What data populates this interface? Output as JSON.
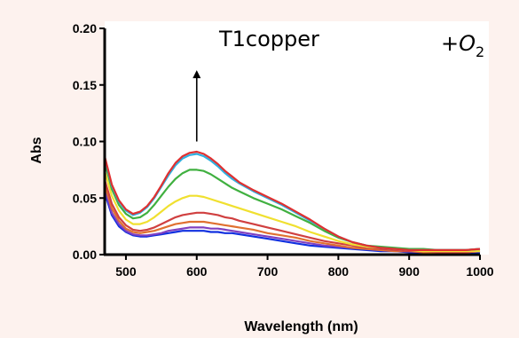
{
  "colors": {
    "background": "#fdf2ee",
    "plot_background": "#ffffff",
    "axis": "#000000"
  },
  "chart_data": {
    "type": "line",
    "title": "",
    "xlabel": "Wavelength (nm)",
    "ylabel": "Abs",
    "xlim": [
      470,
      1000
    ],
    "ylim": [
      0,
      0.2
    ],
    "x_ticks": [
      500,
      600,
      700,
      800,
      900,
      1000
    ],
    "y_ticks": [
      0.0,
      0.05,
      0.1,
      0.15,
      0.2
    ],
    "x_tick_labels": [
      "500",
      "600",
      "700",
      "800",
      "900",
      "1000"
    ],
    "y_tick_labels": [
      "0.00",
      "0.05",
      "0.10",
      "0.15",
      "0.20"
    ],
    "grid": false,
    "legend": "none",
    "annotations": {
      "label": "T1copper",
      "reagent_prefix": "+",
      "reagent_main": "O",
      "reagent_sub": "2",
      "arrow_direction": "up",
      "arrow_x": 600,
      "arrow_y_from": 0.1,
      "arrow_y_to": 0.163
    },
    "x": [
      470,
      480,
      490,
      500,
      510,
      520,
      530,
      540,
      550,
      560,
      570,
      580,
      590,
      600,
      610,
      620,
      630,
      640,
      650,
      660,
      680,
      700,
      720,
      740,
      760,
      780,
      800,
      820,
      840,
      860,
      880,
      900,
      920,
      940,
      960,
      980,
      1000
    ],
    "series": [
      {
        "color": "#1030e0",
        "values": [
          0.055,
          0.035,
          0.025,
          0.02,
          0.017,
          0.016,
          0.016,
          0.017,
          0.018,
          0.019,
          0.02,
          0.021,
          0.021,
          0.021,
          0.021,
          0.02,
          0.02,
          0.019,
          0.019,
          0.018,
          0.016,
          0.014,
          0.012,
          0.01,
          0.008,
          0.007,
          0.006,
          0.005,
          0.004,
          0.003,
          0.003,
          0.002,
          0.002,
          0.002,
          0.002,
          0.002,
          0.002
        ]
      },
      {
        "color": "#8040c0",
        "values": [
          0.058,
          0.037,
          0.027,
          0.021,
          0.018,
          0.017,
          0.017,
          0.018,
          0.019,
          0.021,
          0.022,
          0.023,
          0.024,
          0.024,
          0.024,
          0.023,
          0.023,
          0.022,
          0.021,
          0.02,
          0.018,
          0.016,
          0.014,
          0.012,
          0.01,
          0.008,
          0.007,
          0.006,
          0.005,
          0.004,
          0.003,
          0.003,
          0.002,
          0.002,
          0.002,
          0.002,
          0.003
        ]
      },
      {
        "color": "#e07030",
        "values": [
          0.062,
          0.041,
          0.03,
          0.023,
          0.02,
          0.019,
          0.02,
          0.021,
          0.023,
          0.025,
          0.027,
          0.028,
          0.029,
          0.029,
          0.029,
          0.028,
          0.027,
          0.026,
          0.025,
          0.024,
          0.022,
          0.019,
          0.017,
          0.015,
          0.012,
          0.01,
          0.008,
          0.006,
          0.005,
          0.004,
          0.003,
          0.003,
          0.002,
          0.002,
          0.002,
          0.002,
          0.003
        ]
      },
      {
        "color": "#d04040",
        "values": [
          0.066,
          0.045,
          0.033,
          0.026,
          0.022,
          0.021,
          0.022,
          0.024,
          0.027,
          0.03,
          0.033,
          0.035,
          0.036,
          0.037,
          0.037,
          0.036,
          0.035,
          0.033,
          0.032,
          0.03,
          0.027,
          0.024,
          0.021,
          0.018,
          0.015,
          0.012,
          0.01,
          0.008,
          0.006,
          0.005,
          0.004,
          0.003,
          0.003,
          0.002,
          0.002,
          0.002,
          0.003
        ]
      },
      {
        "color": "#f0e030",
        "values": [
          0.074,
          0.052,
          0.039,
          0.031,
          0.027,
          0.027,
          0.029,
          0.033,
          0.038,
          0.043,
          0.047,
          0.05,
          0.052,
          0.052,
          0.051,
          0.049,
          0.047,
          0.045,
          0.043,
          0.041,
          0.037,
          0.033,
          0.029,
          0.025,
          0.02,
          0.016,
          0.012,
          0.009,
          0.007,
          0.006,
          0.005,
          0.004,
          0.003,
          0.003,
          0.003,
          0.003,
          0.003
        ]
      },
      {
        "color": "#40b040",
        "values": [
          0.082,
          0.058,
          0.044,
          0.036,
          0.032,
          0.033,
          0.037,
          0.044,
          0.052,
          0.06,
          0.067,
          0.072,
          0.075,
          0.075,
          0.074,
          0.071,
          0.067,
          0.063,
          0.059,
          0.056,
          0.05,
          0.045,
          0.04,
          0.034,
          0.028,
          0.021,
          0.015,
          0.011,
          0.008,
          0.007,
          0.006,
          0.005,
          0.005,
          0.004,
          0.004,
          0.004,
          0.005
        ]
      },
      {
        "color": "#30b0e0",
        "values": [
          0.086,
          0.061,
          0.047,
          0.039,
          0.035,
          0.037,
          0.042,
          0.05,
          0.06,
          0.07,
          0.079,
          0.085,
          0.088,
          0.089,
          0.087,
          0.083,
          0.078,
          0.072,
          0.067,
          0.063,
          0.056,
          0.05,
          0.044,
          0.037,
          0.03,
          0.023,
          0.016,
          0.011,
          0.008,
          0.006,
          0.005,
          0.004,
          0.004,
          0.004,
          0.004,
          0.004,
          0.005
        ]
      },
      {
        "color": "#e03030",
        "values": [
          0.087,
          0.062,
          0.048,
          0.04,
          0.036,
          0.038,
          0.043,
          0.051,
          0.061,
          0.072,
          0.081,
          0.087,
          0.09,
          0.091,
          0.089,
          0.085,
          0.08,
          0.074,
          0.069,
          0.064,
          0.057,
          0.051,
          0.045,
          0.038,
          0.031,
          0.023,
          0.016,
          0.011,
          0.008,
          0.006,
          0.005,
          0.004,
          0.004,
          0.004,
          0.004,
          0.004,
          0.005
        ]
      }
    ]
  }
}
